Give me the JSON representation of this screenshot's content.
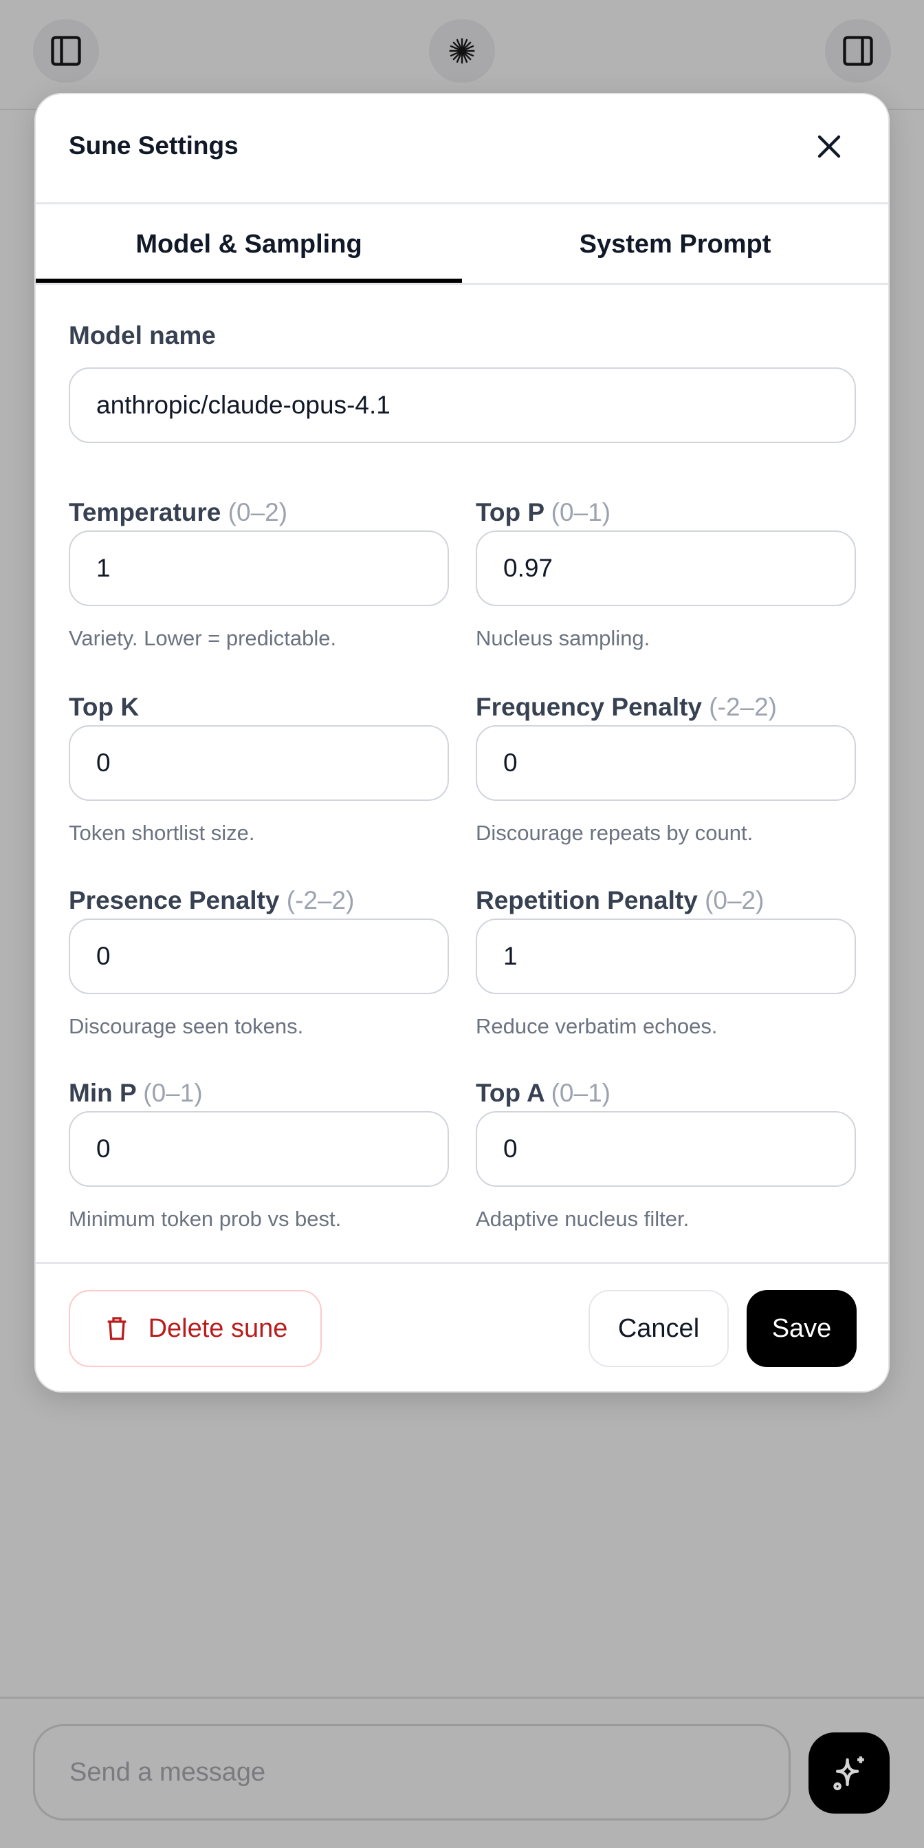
{
  "topbar": {
    "left_icon": "sidebar-left-icon",
    "center_icon": "starburst-logo-icon",
    "right_icon": "sidebar-right-icon"
  },
  "modal": {
    "title": "Sune Settings",
    "tabs": [
      {
        "label": "Model & Sampling",
        "active": true
      },
      {
        "label": "System Prompt",
        "active": false
      }
    ],
    "model_name": {
      "label": "Model name",
      "value": "anthropic/claude-opus-4.1"
    },
    "fields": [
      {
        "label": "Temperature",
        "range": "(0–2)",
        "value": "1",
        "help": "Variety. Lower = predictable."
      },
      {
        "label": "Top P",
        "range": "(0–1)",
        "value": "0.97",
        "help": "Nucleus sampling."
      },
      {
        "label": "Top K",
        "range": "",
        "value": "0",
        "help": "Token shortlist size."
      },
      {
        "label": "Frequency Penalty",
        "range": "(-2–2)",
        "value": "0",
        "help": "Discourage repeats by count."
      },
      {
        "label": "Presence Penalty",
        "range": "(-2–2)",
        "value": "0",
        "help": "Discourage seen tokens."
      },
      {
        "label": "Repetition Penalty",
        "range": "(0–2)",
        "value": "1",
        "help": "Reduce verbatim echoes."
      },
      {
        "label": "Min P",
        "range": "(0–1)",
        "value": "0",
        "help": "Minimum token prob vs best."
      },
      {
        "label": "Top A",
        "range": "(0–1)",
        "value": "0",
        "help": "Adaptive nucleus filter."
      }
    ],
    "footer": {
      "delete_label": "Delete sune",
      "cancel_label": "Cancel",
      "save_label": "Save"
    },
    "colors": {
      "danger": "#b91c1c",
      "primary": "#000000"
    }
  },
  "composer": {
    "placeholder": "Send a message",
    "send_icon": "sparkles-icon"
  }
}
